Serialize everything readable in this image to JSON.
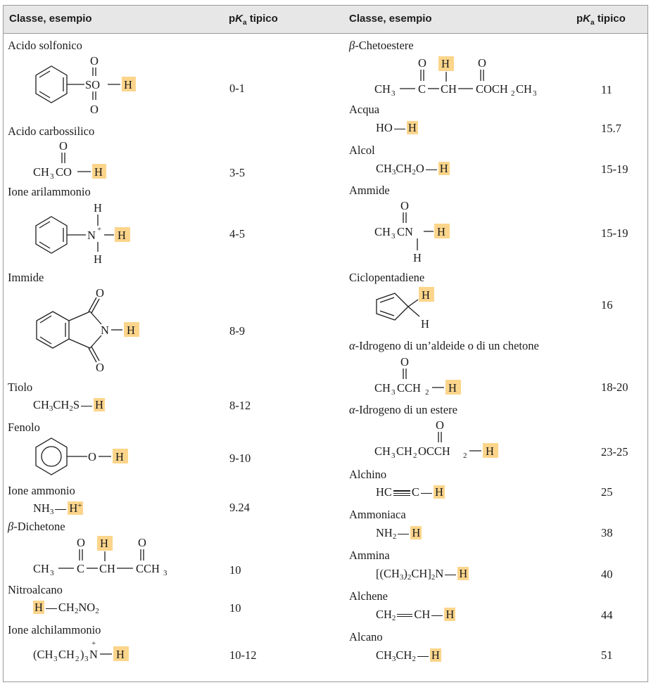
{
  "header": {
    "col_class_left": "Classe, esempio",
    "col_pka_left_prefix": "p",
    "col_pka_left_k": "K",
    "col_pka_left_sub": "a",
    "col_pka_left_suffix": " tipico",
    "col_class_right": "Classe, esempio",
    "col_pka_right_prefix": "p",
    "col_pka_right_k": "K",
    "col_pka_right_sub": "a",
    "col_pka_right_suffix": " tipico"
  },
  "left": [
    {
      "name": "Acido solfonico",
      "pka": "0-1"
    },
    {
      "name": "Acido carbossilico",
      "pka": "3-5"
    },
    {
      "name": "Ione arilammonio",
      "pka": "4-5"
    },
    {
      "name": "Immide",
      "pka": "8-9"
    },
    {
      "name": "Tiolo",
      "pka": "8-12"
    },
    {
      "name": "Fenolo",
      "pka": "9-10"
    },
    {
      "name": "Ione ammonio",
      "pka": "9.24"
    },
    {
      "name_greek": "β",
      "name_rest": "-Dichetone",
      "pka": "10"
    },
    {
      "name": "Nitroalcano",
      "pka": "10"
    },
    {
      "name": "Ione alchilammonio",
      "pka": "10-12"
    }
  ],
  "right": [
    {
      "name_greek": "β",
      "name_rest": "-Chetoestere",
      "pka": "11"
    },
    {
      "name": "Acqua",
      "pka": "15.7"
    },
    {
      "name": "Alcol",
      "pka": "15-19"
    },
    {
      "name": "Ammide",
      "pka": "15-19"
    },
    {
      "name": "Ciclopentadiene",
      "pka": "16"
    },
    {
      "name_greek": "α",
      "name_rest": "-Idrogeno di un’aldeide o di un chetone",
      "pka": "18-20"
    },
    {
      "name_greek": "α",
      "name_rest": "-Idrogeno di un estere",
      "pka": "23-25"
    },
    {
      "name": "Alchino",
      "pka": "25"
    },
    {
      "name": "Ammoniaca",
      "pka": "38"
    },
    {
      "name": "Ammina",
      "pka": "40"
    },
    {
      "name": "Alchene",
      "pka": "44"
    },
    {
      "name": "Alcano",
      "pka": "51"
    }
  ],
  "formula": {
    "O": "O",
    "H": "H",
    "S": "S",
    "N": "N",
    "C": "C",
    "plus": "+",
    "SO": "SO",
    "CH": "CH",
    "CH3": "CH",
    "sub2": "2",
    "sub3": "3",
    "acid_carb_a": "CH",
    "acid_carb_b": "CO",
    "tiolo_a": "CH",
    "tiolo_b": "CH",
    "tiolo_c": "S",
    "ammonio_a": "NH",
    "ammonio_plus": "+",
    "nitro_a": "CH",
    "nitro_b": "NO",
    "alchil_a": "(CH",
    "alchil_b": "CH",
    "alchil_c": ")",
    "alchil_d": "N",
    "diket_c3": "CCH",
    "keto_c": "COCH",
    "keto_d": "CH",
    "acqua_a": "HO",
    "alcol_a": "CH",
    "alcol_b": "CH",
    "alcol_c": "O",
    "ammide_a": "CH",
    "ammide_b": "CN",
    "ald_a": "CH",
    "ald_b": "CCH",
    "est_a": "CH",
    "est_b": "CH",
    "est_c": "OCCH",
    "alch_a": "HC",
    "alch_b": "C",
    "ammon_a": "NH",
    "ammina_a": "[(CH",
    "ammina_b": ")",
    "ammina_c": "CH]",
    "ammina_d": "N",
    "alchene_a": "CH",
    "alchene_b": "CH",
    "alcano_a": "CH",
    "alcano_b": "CH"
  },
  "colors": {
    "highlight": "#fcd58b",
    "header_bg": "#e7e7e7",
    "border": "#9a9a9a"
  }
}
